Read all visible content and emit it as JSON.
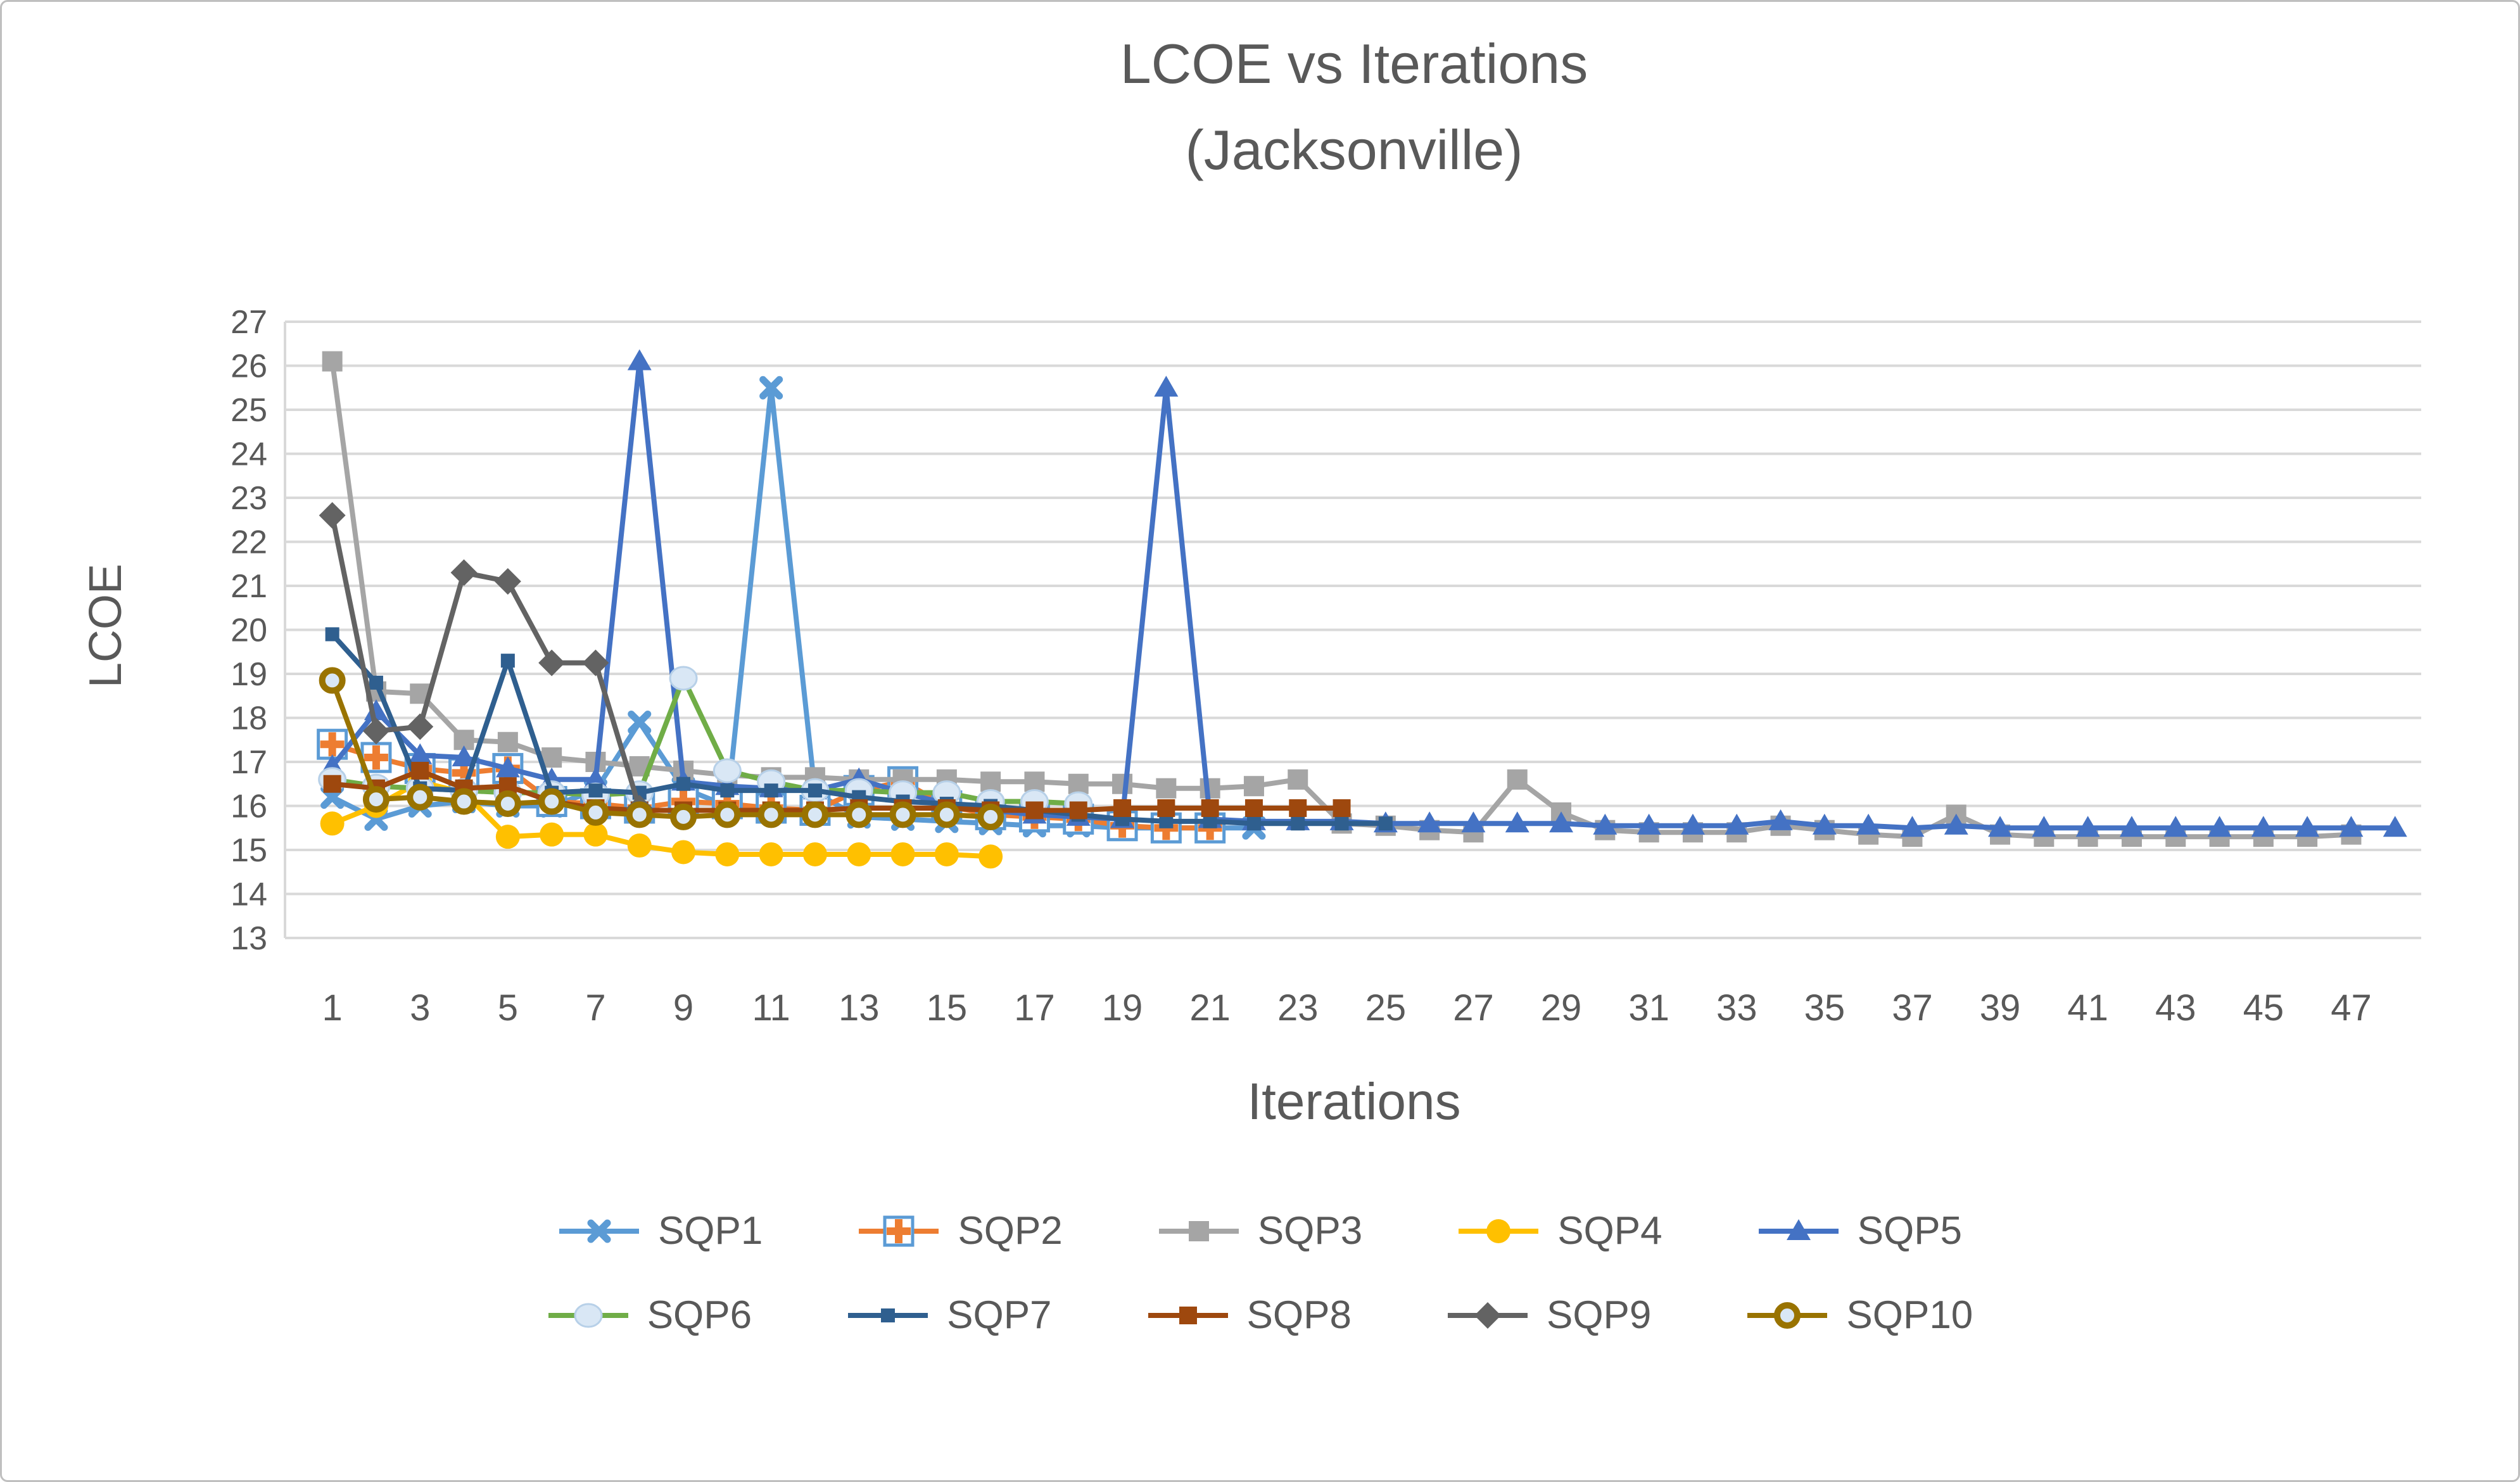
{
  "chart_data": {
    "type": "line",
    "title": "LCOE vs Iterations",
    "subtitle": "(Jacksonville)",
    "xlabel": "Iterations",
    "ylabel": "LCOE",
    "ylim": [
      13,
      27
    ],
    "ytick_step": 1,
    "n_iterations": 48,
    "xtick_labels": [
      1,
      3,
      5,
      7,
      9,
      11,
      13,
      15,
      17,
      19,
      21,
      23,
      25,
      27,
      29,
      31,
      33,
      35,
      37,
      39,
      41,
      43,
      45,
      47
    ],
    "grid": true,
    "legend_position": "bottom-two-rows",
    "colors": {
      "text": "#595959",
      "grid": "#D9D9D9",
      "pale_marker_fill": "#D9E7F5",
      "pale_marker_stroke": "#B7D0E8",
      "boxplus_box": "#5B9BD5"
    },
    "series": [
      {
        "name": "SQP1",
        "color": "#5B9BD5",
        "marker": "x",
        "values": [
          16.2,
          15.7,
          16.0,
          16.1,
          16.0,
          16.0,
          16.35,
          17.9,
          16.4,
          16.0,
          25.5,
          16.3,
          15.75,
          15.7,
          15.65,
          15.6,
          15.55,
          15.55,
          15.5,
          15.5,
          15.5,
          15.5
        ]
      },
      {
        "name": "SQP2",
        "color": "#ED7D31",
        "marker": "boxplus",
        "values": [
          17.4,
          17.1,
          16.85,
          16.75,
          16.85,
          16.1,
          16.05,
          15.95,
          16.1,
          16.05,
          15.95,
          15.9,
          16.35,
          16.55,
          16.0,
          15.8,
          15.75,
          15.7,
          15.55,
          15.5,
          15.5
        ]
      },
      {
        "name": "SQP3",
        "color": "#A5A5A5",
        "marker": "square",
        "values": [
          26.1,
          18.6,
          18.55,
          17.5,
          17.45,
          17.1,
          17.0,
          16.9,
          16.8,
          16.7,
          16.65,
          16.65,
          16.6,
          16.6,
          16.6,
          16.55,
          16.55,
          16.5,
          16.5,
          16.4,
          16.4,
          16.45,
          16.6,
          15.6,
          15.55,
          15.45,
          15.4,
          16.6,
          15.85,
          15.45,
          15.4,
          15.4,
          15.4,
          15.55,
          15.45,
          15.35,
          15.3,
          15.8,
          15.35,
          15.3,
          15.3,
          15.3,
          15.3,
          15.3,
          15.3,
          15.3,
          15.35
        ]
      },
      {
        "name": "SQP4",
        "color": "#FFC000",
        "marker": "circle",
        "values": [
          15.6,
          16.0,
          16.55,
          16.3,
          15.3,
          15.35,
          15.35,
          15.1,
          14.95,
          14.9,
          14.9,
          14.9,
          14.9,
          14.9,
          14.9,
          14.85
        ]
      },
      {
        "name": "SQP5",
        "color": "#4472C4",
        "marker": "triangle",
        "values": [
          16.9,
          18.15,
          17.15,
          17.1,
          16.85,
          16.6,
          16.6,
          26.1,
          16.55,
          16.45,
          16.4,
          16.35,
          16.6,
          16.3,
          16.05,
          15.9,
          15.8,
          15.75,
          15.7,
          25.5,
          15.7,
          15.65,
          15.65,
          15.65,
          15.6,
          15.6,
          15.6,
          15.6,
          15.6,
          15.55,
          15.55,
          15.55,
          15.55,
          15.65,
          15.55,
          15.55,
          15.5,
          15.55,
          15.5,
          15.5,
          15.5,
          15.5,
          15.5,
          15.5,
          15.5,
          15.5,
          15.5,
          15.5
        ]
      },
      {
        "name": "SQP6",
        "color": "#70AD47",
        "marker": "palecircle",
        "values": [
          16.6,
          16.45,
          16.4,
          16.35,
          16.3,
          16.3,
          16.25,
          16.3,
          18.9,
          16.8,
          16.55,
          16.35,
          16.35,
          16.3,
          16.3,
          16.1,
          16.1,
          16.05
        ]
      },
      {
        "name": "SQP7",
        "color": "#2F5F8F",
        "marker": "smallsquare",
        "values": [
          19.9,
          18.8,
          16.4,
          16.35,
          19.3,
          16.3,
          16.35,
          16.3,
          16.5,
          16.35,
          16.35,
          16.35,
          16.2,
          16.1,
          16.05,
          16.0,
          15.9,
          15.8,
          15.7,
          15.65,
          15.65,
          15.6,
          15.6,
          15.6,
          15.6
        ]
      },
      {
        "name": "SQP8",
        "color": "#9E480E",
        "marker": "square2",
        "values": [
          16.5,
          16.4,
          16.8,
          16.4,
          16.45,
          16.1,
          15.95,
          15.9,
          15.9,
          15.9,
          15.9,
          15.9,
          15.95,
          15.95,
          15.95,
          15.9,
          15.9,
          15.9,
          15.95,
          15.95,
          15.95,
          15.95,
          15.95,
          15.95
        ]
      },
      {
        "name": "SQP9",
        "color": "#636363",
        "marker": "diamond",
        "values": [
          22.6,
          17.7,
          17.8,
          21.3,
          21.1,
          19.25,
          19.25,
          15.95
        ]
      },
      {
        "name": "SQP10",
        "color": "#997300",
        "marker": "ring",
        "values": [
          18.85,
          16.15,
          16.2,
          16.1,
          16.05,
          16.1,
          15.85,
          15.8,
          15.75,
          15.8,
          15.8,
          15.8,
          15.8,
          15.8,
          15.8,
          15.75
        ]
      }
    ]
  }
}
